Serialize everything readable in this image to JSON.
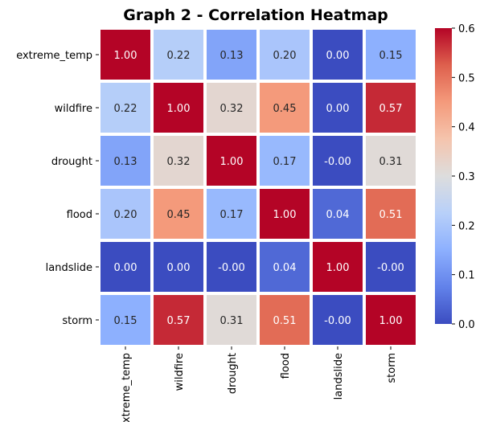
{
  "chart_data": {
    "type": "heatmap",
    "title": "Graph 2 - Correlation Heatmap",
    "rows": [
      "extreme_temp",
      "wildfire",
      "drought",
      "flood",
      "landslide",
      "storm"
    ],
    "columns": [
      "extreme_temp",
      "wildfire",
      "drought",
      "flood",
      "landslide",
      "storm"
    ],
    "values": [
      [
        1.0,
        0.22,
        0.13,
        0.2,
        0.0,
        0.15
      ],
      [
        0.22,
        1.0,
        0.32,
        0.45,
        0.0,
        0.57
      ],
      [
        0.13,
        0.32,
        1.0,
        0.17,
        -0.0,
        0.31
      ],
      [
        0.2,
        0.45,
        0.17,
        1.0,
        0.04,
        0.51
      ],
      [
        0.0,
        0.0,
        -0.0,
        0.04,
        1.0,
        -0.0
      ],
      [
        0.15,
        0.57,
        0.31,
        0.51,
        -0.0,
        1.0
      ]
    ],
    "cell_labels": [
      [
        "1.00",
        "0.22",
        "0.13",
        "0.20",
        "0.00",
        "0.15"
      ],
      [
        "0.22",
        "1.00",
        "0.32",
        "0.45",
        "0.00",
        "0.57"
      ],
      [
        "0.13",
        "0.32",
        "1.00",
        "0.17",
        "-0.00",
        "0.31"
      ],
      [
        "0.20",
        "0.45",
        "0.17",
        "1.00",
        "0.04",
        "0.51"
      ],
      [
        "0.00",
        "0.00",
        "-0.00",
        "0.04",
        "1.00",
        "-0.00"
      ],
      [
        "0.15",
        "0.57",
        "0.31",
        "0.51",
        "-0.00",
        "1.00"
      ]
    ],
    "colormap": "coolwarm",
    "vmin": 0.0,
    "vmax": 0.6,
    "colorbar": {
      "ticks": [
        0.0,
        0.1,
        0.2,
        0.3,
        0.4,
        0.5,
        0.6
      ],
      "tick_labels": [
        "0.0",
        "0.1",
        "0.2",
        "0.3",
        "0.4",
        "0.5",
        "0.6"
      ],
      "position": "right"
    },
    "cell_border_color": "#ffffff"
  }
}
